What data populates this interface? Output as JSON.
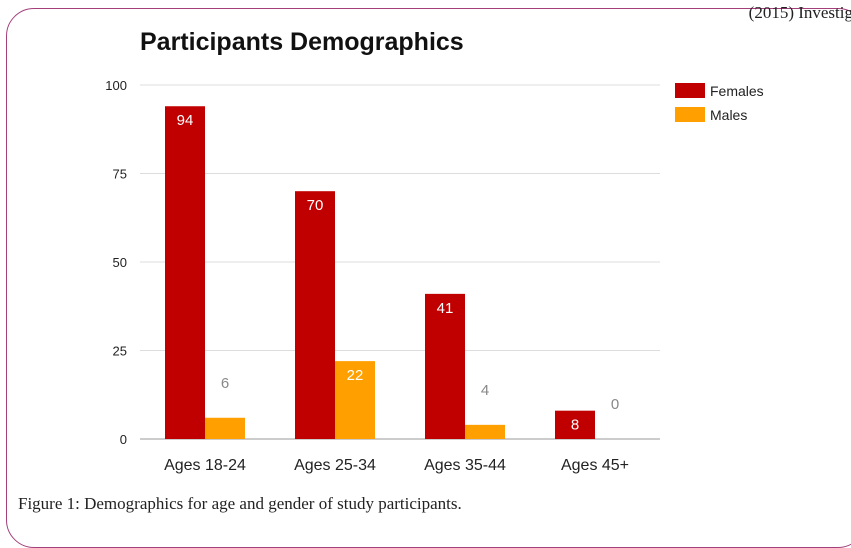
{
  "header": {
    "cut_text": "(2015) Investig"
  },
  "caption": "Figure 1: Demographics for age and gender of study participants.",
  "colors": {
    "females": "#c00000",
    "males": "#ffa000",
    "frame": "#a3407a",
    "grid": "#dddddd"
  },
  "chart_data": {
    "type": "bar",
    "title": "Participants Demographics",
    "xlabel": "",
    "ylabel": "",
    "categories": [
      "Ages 18-24",
      "Ages 25-34",
      "Ages 35-44",
      "Ages 45+"
    ],
    "series": [
      {
        "name": "Females",
        "values": [
          94,
          70,
          41,
          8
        ]
      },
      {
        "name": "Males",
        "values": [
          6,
          22,
          4,
          0
        ]
      }
    ],
    "ylim": [
      0,
      100
    ],
    "yticks": [
      0,
      25,
      50,
      75,
      100
    ],
    "grid": true,
    "legend": "top-right"
  }
}
